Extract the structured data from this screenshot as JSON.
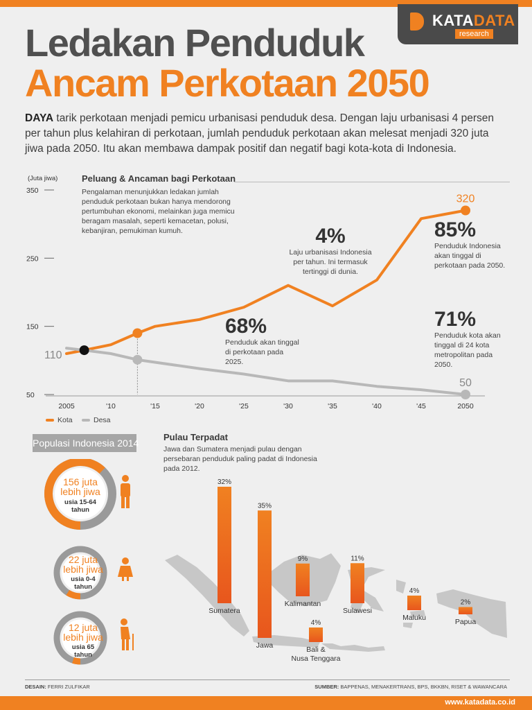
{
  "brand": {
    "name_part1": "KATA",
    "name_part2": "DATA",
    "sub": "research"
  },
  "title": {
    "line1": "Ledakan Penduduk",
    "line2": "Ancam Perkotaan 2050"
  },
  "lead": {
    "bold": "DAYA",
    "text": " tarik perkotaan menjadi pemicu urbanisasi penduduk desa.  Dengan laju urbanisasi 4 persen per tahun plus kelahiran di perkotaan, jumlah penduduk perkotaan akan melesat menjadi 320 juta jiwa pada 2050. Itu akan membawa dampak positif dan negatif bagi kota-kota di Indonesia."
  },
  "chart_data": [
    {
      "type": "line",
      "title": "Peluang & Ancaman bagi Perkotaan",
      "description": "Pengalaman menunjukkan ledakan jumlah penduduk perkotaan bukan hanya mendorong pertumbuhan ekonomi, melainkan juga memicu beragam masalah, seperti kemacetan, polusi, kebanjiran, pemukiman kumuh.",
      "ylabel": "(Juta jiwa)",
      "yticks": [
        350,
        250,
        150,
        50
      ],
      "ylim": [
        50,
        350
      ],
      "x_ticks": [
        "2005",
        "'10",
        "'15",
        "'20",
        "'25",
        "'30",
        "'35",
        "'40",
        "'45",
        "2050"
      ],
      "xlim": [
        2005,
        2050
      ],
      "series": [
        {
          "name": "Kota",
          "color": "#f08121",
          "x": [
            2005,
            2007,
            2010,
            2013,
            2015,
            2020,
            2025,
            2030,
            2035,
            2040,
            2045,
            2050
          ],
          "y": [
            110,
            115,
            123,
            140,
            150,
            160,
            178,
            210,
            180,
            218,
            308,
            320
          ]
        },
        {
          "name": "Desa",
          "color": "#b8b8b8",
          "x": [
            2005,
            2007,
            2010,
            2013,
            2020,
            2025,
            2030,
            2035,
            2040,
            2045,
            2050
          ],
          "y": [
            118,
            115,
            110,
            101,
            88,
            80,
            70,
            70,
            62,
            57,
            50
          ]
        }
      ],
      "value_labels": {
        "start": "110",
        "end_kota": "320",
        "end_desa": "50"
      },
      "grid": false,
      "legend": "bottom-left"
    },
    {
      "type": "bar",
      "title": "Pulau Terpadat",
      "description": "Jawa dan Sumatera menjadi pulau dengan persebaran penduduk paling padat di Indonesia pada 2012.",
      "categories": [
        "Sumatera",
        "Jawa",
        "Kalimantan",
        "Sulawesi",
        "Bali & Nusa Tenggara",
        "Maluku",
        "Papua"
      ],
      "values": [
        32,
        35,
        9,
        11,
        4,
        4,
        2
      ],
      "labels": [
        "32%",
        "35%",
        "9%",
        "11%",
        "4%",
        "4%",
        "2%"
      ],
      "color": "#f08121"
    }
  ],
  "annotations": {
    "a4": {
      "big": "4%",
      "text": "Laju urbanisasi Indonesia per tahun. Ini termasuk tertinggi di dunia."
    },
    "a85": {
      "big": "85%",
      "text": "Penduduk Indonesia akan tinggal di perkotaan pada 2050."
    },
    "a68": {
      "big": "68%",
      "text": "Penduduk akan tinggal di perkotaan pada 2025."
    },
    "a71": {
      "big": "71%",
      "text": "Penduduk kota akan tinggal di 24 kota metropolitan pada 2050."
    }
  },
  "legend": {
    "kota": "Kota",
    "desa": "Desa"
  },
  "population": {
    "title": "Populasi Indonesia 2014",
    "rings": [
      {
        "big1": "156 juta",
        "big2": "lebih jiwa",
        "small1": "usia 15-64",
        "small2": "tahun",
        "share": 0.62
      },
      {
        "big1": "22 juta",
        "big2": "lebih jiwa",
        "small1": "usia 0-4",
        "small2": "tahun",
        "share": 0.09
      },
      {
        "big1": "12 juta",
        "big2": "lebih jiwa",
        "small1": "usia 65",
        "small2": "tahun",
        "share": 0.05
      }
    ]
  },
  "footer": {
    "design_label": "DESAIN:",
    "design": " FERRI ZULFIKAR",
    "source_label": "SUMBER:",
    "source": " BAPPENAS, MENAKERTRANS, BPS, BKKBN, RISET & WAWANCARA",
    "url": "www.katadata.co.id"
  },
  "colors": {
    "accent": "#f08121",
    "dark": "#4a4a4a",
    "grey_line": "#b8b8b8",
    "map": "#c7c7c7"
  }
}
